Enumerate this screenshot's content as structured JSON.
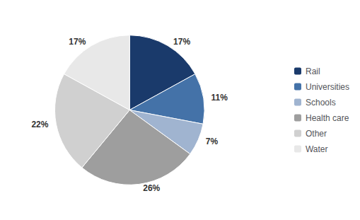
{
  "chart_data": {
    "type": "pie",
    "categories": [
      "Rail",
      "Universities",
      "Schools",
      "Health care",
      "Other",
      "Water"
    ],
    "values": [
      17,
      11,
      7,
      26,
      22,
      17
    ],
    "value_labels": [
      "17%",
      "11%",
      "7%",
      "26%",
      "22%",
      "17%"
    ],
    "colors": [
      "#1a3a6b",
      "#4472a8",
      "#a0b4d0",
      "#9e9e9e",
      "#d0d0d0",
      "#e8e8e8"
    ],
    "data_labels": true,
    "legend": "right"
  }
}
